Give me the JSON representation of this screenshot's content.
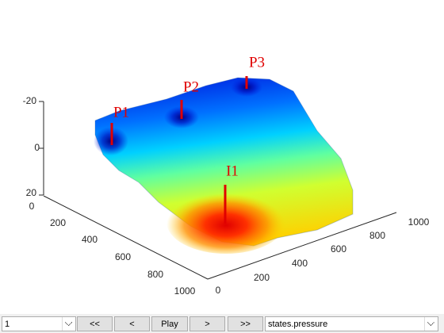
{
  "plot": {
    "z_ticks": [
      -20,
      0,
      20
    ],
    "x_ticks": [
      0,
      200,
      400,
      600,
      800,
      1000
    ],
    "y_ticks": [
      0,
      200,
      400,
      600,
      800,
      1000
    ],
    "wells": [
      {
        "label": "P1"
      },
      {
        "label": "P2"
      },
      {
        "label": "P3"
      },
      {
        "label": "I1"
      }
    ]
  },
  "controls": {
    "step": "1",
    "buttons": [
      "<<",
      "<",
      "Play",
      ">",
      ">>"
    ],
    "field": "states.pressure"
  }
}
